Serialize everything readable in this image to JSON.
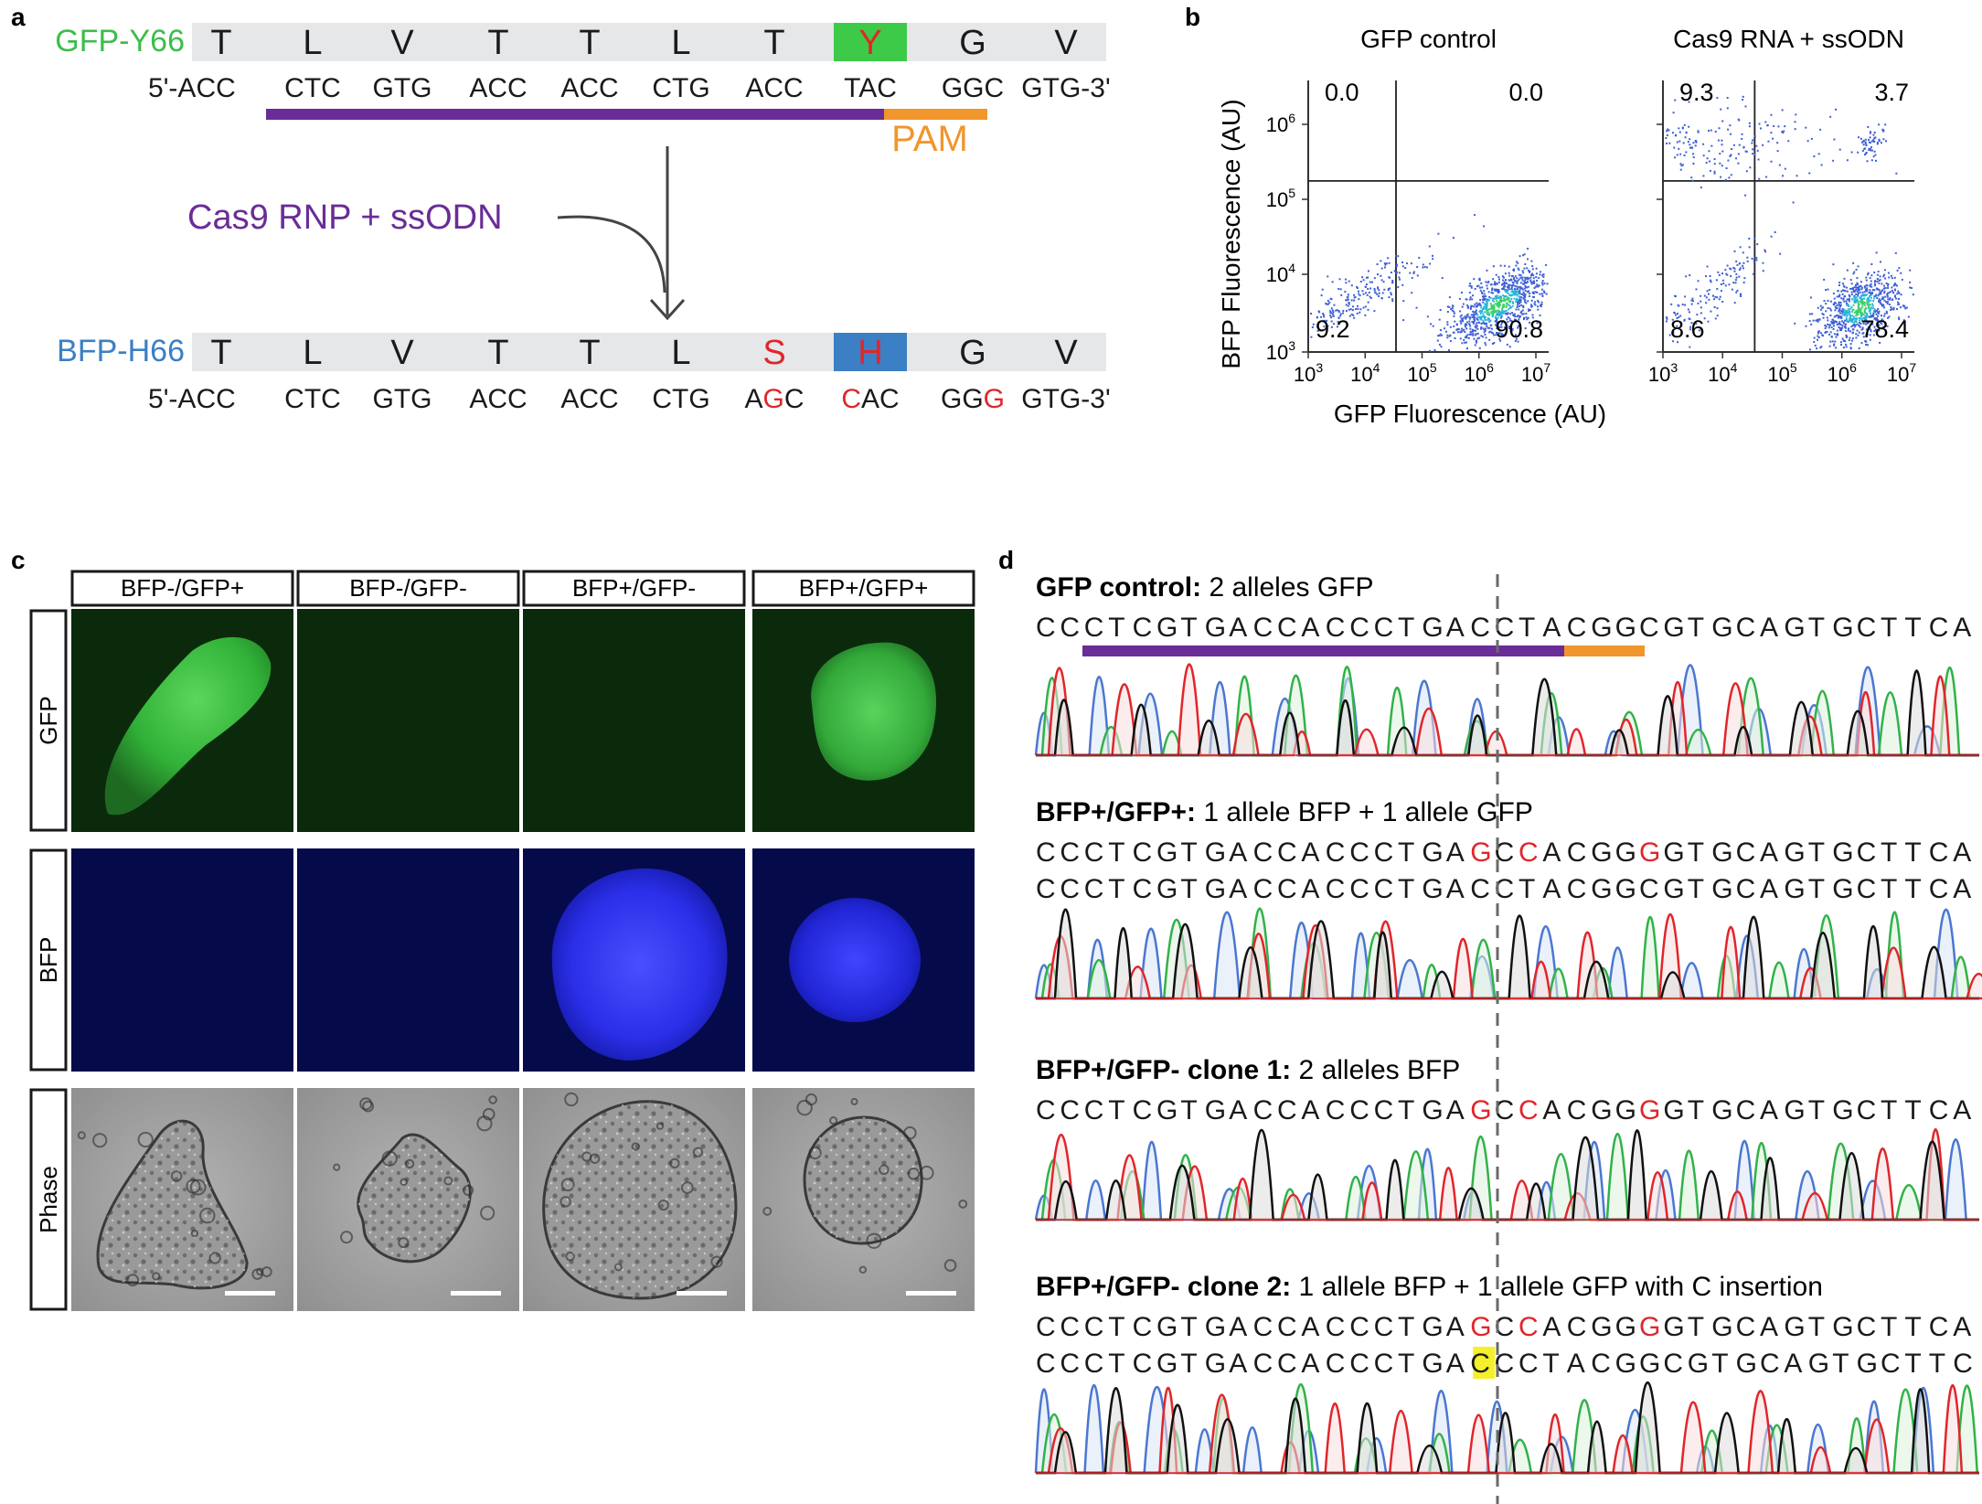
{
  "panel_labels": {
    "a": "a",
    "b": "b",
    "c": "c",
    "d": "d"
  },
  "colors": {
    "gfp_green": "#3dbd4a",
    "bfp_blue": "#3b7fc4",
    "mutation_red": "#e0262b",
    "guide_purple": "#6a2c96",
    "pam_orange": "#f0962d",
    "highlight_yellow": "#f4f02c",
    "seq_box_grey": "#e6e7e8"
  },
  "panel_a": {
    "gfp_label": "GFP-Y66",
    "bfp_label": "BFP-H66",
    "gfp_aa": [
      "T",
      "L",
      "V",
      "T",
      "T",
      "L",
      "T",
      "Y",
      "G",
      "V"
    ],
    "gfp_codons": [
      "5'-ACC",
      "CTC",
      "GTG",
      "ACC",
      "ACC",
      "CTG",
      "ACC",
      "TAC",
      "GGC",
      "GTG-3'"
    ],
    "bfp_aa": [
      "T",
      "L",
      "V",
      "T",
      "T",
      "L",
      "S",
      "H",
      "G",
      "V"
    ],
    "bfp_codons": [
      "5'-ACC",
      "CTC",
      "GTG",
      "ACC",
      "ACC",
      "CTG",
      "AGC",
      "CAC",
      "GGG",
      "GTG-3'"
    ],
    "pam_label": "PAM",
    "treatment_label": "Cas9 RNP + ssODN"
  },
  "panel_b": {
    "xlabel": "GFP Fluorescence (AU)",
    "ylabel": "BFP Fluorescence (AU)",
    "tick_base": "10",
    "x_tick_exponents": [
      "3",
      "4",
      "5",
      "6",
      "7"
    ],
    "y_tick_exponents": [
      "3",
      "4",
      "5",
      "6"
    ],
    "plots": [
      {
        "title": "GFP control",
        "quadrants": {
          "upper_left": "0.0",
          "upper_right": "0.0",
          "lower_left": "9.2",
          "lower_right": "90.8"
        }
      },
      {
        "title": "Cas9 RNA + ssODN",
        "quadrants": {
          "upper_left": "9.3",
          "upper_right": "3.7",
          "lower_left": "8.6",
          "lower_right": "78.4"
        }
      }
    ]
  },
  "panel_c": {
    "columns": [
      "BFP-/GFP+",
      "BFP-/GFP-",
      "BFP+/GFP-",
      "BFP+/GFP+"
    ],
    "rows": [
      "GFP",
      "BFP",
      "Phase"
    ]
  },
  "panel_d": {
    "sections": [
      {
        "title": "GFP control:",
        "desc": " 2 alleles GFP",
        "sequences": [
          "CCCTCGTGACCACCCTGACCTACGGCGTGCAGTGCTTCA"
        ]
      },
      {
        "title": "BFP+/GFP+:",
        "desc": " 1 allele BFP + 1 allele GFP",
        "sequences": [
          "CCCTCGTGACCACCCTGAGCCACGGGGTGCAGTGCTTCA",
          "CCCTCGTGACCACCCTGACCTACGGCGTGCAGTGCTTCA"
        ]
      },
      {
        "title": "BFP+/GFP- clone 1:",
        "desc": " 2 alleles BFP",
        "sequences": [
          "CCCTCGTGACCACCCTGAGCCACGGGGTGCAGTGCTTCA"
        ]
      },
      {
        "title": "BFP+/GFP- clone 2:",
        "desc": " 1 allele BFP + 1 allele GFP with C insertion",
        "sequences": [
          "CCCTCGTGACCACCCTGAGCCACGGGGTGCAGTGCTTCA",
          "CCCTCGTGACCACCCTGACCCTACGGCGTGCAGTGCTTC"
        ]
      }
    ]
  }
}
